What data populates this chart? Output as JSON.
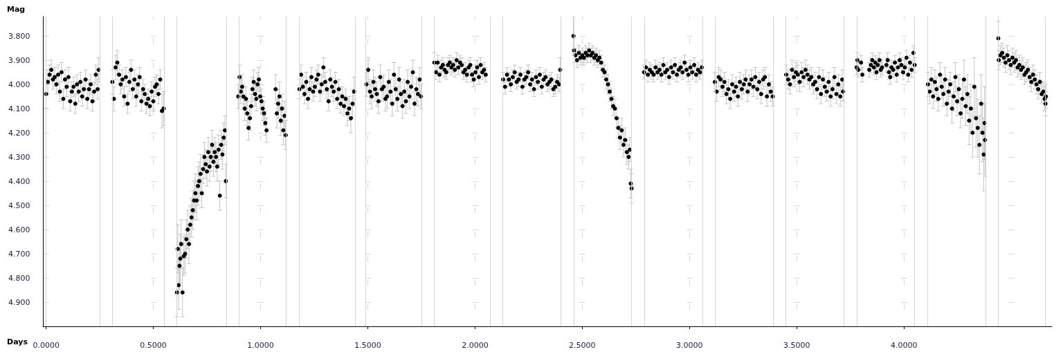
{
  "chart_data": {
    "type": "scatter",
    "xlabel": "Days",
    "ylabel": "Mag",
    "xlim": [
      -0.015,
      4.69
    ],
    "ylim": [
      5.0,
      3.72
    ],
    "xticks": [
      {
        "value": 0,
        "label": "0.0000"
      },
      {
        "value": 0.5,
        "label": "0.5000"
      },
      {
        "value": 1,
        "label": "1.0000"
      },
      {
        "value": 1.5,
        "label": "1.5000"
      },
      {
        "value": 2,
        "label": "2.0000"
      },
      {
        "value": 2.5,
        "label": "2.5000"
      },
      {
        "value": 3,
        "label": "3.0000"
      },
      {
        "value": 3.5,
        "label": "3.5000"
      },
      {
        "value": 4,
        "label": "4.0000"
      }
    ],
    "yticks": [
      {
        "value": 3.8,
        "label": "3.800"
      },
      {
        "value": 3.9,
        "label": "3.900"
      },
      {
        "value": 4.0,
        "label": "4.000"
      },
      {
        "value": 4.1,
        "label": "4.100"
      },
      {
        "value": 4.2,
        "label": "4.200"
      },
      {
        "value": 4.3,
        "label": "4.300"
      },
      {
        "value": 4.4,
        "label": "4.400"
      },
      {
        "value": 4.5,
        "label": "4.500"
      },
      {
        "value": 4.6,
        "label": "4.600"
      },
      {
        "value": 4.7,
        "label": "4.700"
      },
      {
        "value": 4.8,
        "label": "4.800"
      },
      {
        "value": 4.9,
        "label": "4.900"
      }
    ],
    "grid": true,
    "marker": "circle",
    "ref_lines": [
      {
        "axis": "x",
        "value": 0.0,
        "color": "#d3d3d3"
      },
      {
        "axis": "x",
        "value": 0.247,
        "color": "#d3d3d3"
      },
      {
        "axis": "x",
        "value": 0.309,
        "color": "#d3d3d3"
      },
      {
        "axis": "x",
        "value": 0.552,
        "color": "#d3d3d3"
      },
      {
        "axis": "x",
        "value": 0.61,
        "color": "#d3d3d3"
      },
      {
        "axis": "x",
        "value": 0.838,
        "color": "#d3d3d3"
      },
      {
        "axis": "x",
        "value": 0.896,
        "color": "#d3d3d3"
      },
      {
        "axis": "x",
        "value": 1.119,
        "color": "#d3d3d3"
      },
      {
        "axis": "x",
        "value": 1.181,
        "color": "#d3d3d3"
      },
      {
        "axis": "x",
        "value": 1.437,
        "color": "#d3d3d3"
      },
      {
        "axis": "x",
        "value": 1.494,
        "color": "#d3d3d3"
      },
      {
        "axis": "x",
        "value": 1.749,
        "color": "#d3d3d3"
      },
      {
        "axis": "x",
        "value": 1.81,
        "color": "#d3d3d3"
      },
      {
        "axis": "x",
        "value": 2.068,
        "color": "#d3d3d3"
      },
      {
        "axis": "x",
        "value": 2.131,
        "color": "#d3d3d3"
      },
      {
        "axis": "x",
        "value": 2.398,
        "color": "#d3d3d3"
      },
      {
        "axis": "x",
        "value": 2.459,
        "color": "#d3d3d3"
      },
      {
        "axis": "x",
        "value": 2.732,
        "color": "#d3d3d3"
      },
      {
        "axis": "x",
        "value": 2.788,
        "color": "#d3d3d3"
      },
      {
        "axis": "x",
        "value": 3.065,
        "color": "#d3d3d3"
      },
      {
        "axis": "x",
        "value": 3.118,
        "color": "#d3d3d3"
      },
      {
        "axis": "x",
        "value": 3.391,
        "color": "#d3d3d3"
      },
      {
        "axis": "x",
        "value": 3.451,
        "color": "#d3d3d3"
      },
      {
        "axis": "x",
        "value": 3.718,
        "color": "#d3d3d3"
      },
      {
        "axis": "x",
        "value": 3.779,
        "color": "#d3d3d3"
      },
      {
        "axis": "x",
        "value": 4.054,
        "color": "#d3d3d3"
      },
      {
        "axis": "x",
        "value": 4.112,
        "color": "#d3d3d3"
      },
      {
        "axis": "x",
        "value": 4.378,
        "color": "#d3d3d3"
      },
      {
        "axis": "x",
        "value": 4.44,
        "color": "#d3d3d3"
      },
      {
        "axis": "x",
        "value": 4.664,
        "color": "#d3d3d3"
      }
    ],
    "series": [
      {
        "color": "#000000",
        "x": [
          0.0,
          0.008,
          0.016,
          0.024,
          0.032,
          0.04,
          0.048,
          0.056,
          0.064,
          0.072,
          0.08,
          0.088,
          0.096,
          0.104,
          0.112,
          0.12,
          0.128,
          0.136,
          0.144,
          0.152,
          0.16,
          0.168,
          0.176,
          0.184,
          0.192,
          0.2,
          0.208,
          0.216,
          0.224,
          0.232,
          0.24,
          0.245
        ],
        "values": [
          4.04,
          3.99,
          3.96,
          3.94,
          3.98,
          3.97,
          4.0,
          3.96,
          4.03,
          3.95,
          4.06,
          3.98,
          4.01,
          3.97,
          4.07,
          4.03,
          4.01,
          4.08,
          4.0,
          4.03,
          3.99,
          4.05,
          4.02,
          3.98,
          4.06,
          4.02,
          4.0,
          4.07,
          4.03,
          3.96,
          4.02,
          3.94
        ],
        "errors": [
          0.06,
          0.05,
          0.04,
          0.04,
          0.04,
          0.04,
          0.04,
          0.04,
          0.04,
          0.04,
          0.04,
          0.04,
          0.04,
          0.04,
          0.04,
          0.04,
          0.04,
          0.04,
          0.04,
          0.04,
          0.04,
          0.04,
          0.04,
          0.04,
          0.04,
          0.04,
          0.04,
          0.04,
          0.04,
          0.04,
          0.04,
          0.05
        ]
      },
      {
        "color": "#000000",
        "x": [
          0.309,
          0.316,
          0.324,
          0.332,
          0.34,
          0.348,
          0.356,
          0.364,
          0.372,
          0.38,
          0.388,
          0.396,
          0.404,
          0.412,
          0.42,
          0.428,
          0.436,
          0.444,
          0.452,
          0.46,
          0.468,
          0.476,
          0.484,
          0.492,
          0.5,
          0.508,
          0.516,
          0.524,
          0.532,
          0.54,
          0.548
        ],
        "values": [
          3.99,
          4.06,
          3.93,
          3.91,
          3.96,
          4.0,
          3.98,
          4.05,
          3.97,
          4.08,
          3.99,
          3.94,
          4.02,
          3.98,
          4.05,
          4.0,
          3.97,
          4.07,
          4.02,
          4.04,
          4.08,
          4.06,
          4.09,
          4.03,
          4.07,
          4.01,
          4.0,
          4.04,
          3.98,
          4.11,
          4.1
        ],
        "errors": [
          0.05,
          0.05,
          0.05,
          0.05,
          0.04,
          0.04,
          0.04,
          0.04,
          0.04,
          0.04,
          0.04,
          0.04,
          0.04,
          0.04,
          0.04,
          0.04,
          0.04,
          0.04,
          0.04,
          0.04,
          0.04,
          0.04,
          0.04,
          0.04,
          0.04,
          0.04,
          0.04,
          0.04,
          0.04,
          0.07,
          0.07
        ]
      },
      {
        "color": "#000000",
        "x": [
          0.61,
          0.614,
          0.618,
          0.622,
          0.626,
          0.63,
          0.636,
          0.642,
          0.648,
          0.654,
          0.66,
          0.666,
          0.672,
          0.678,
          0.684,
          0.69,
          0.696,
          0.702,
          0.708,
          0.714,
          0.72,
          0.726,
          0.732,
          0.738,
          0.744,
          0.75,
          0.756,
          0.762,
          0.768,
          0.774,
          0.78,
          0.786,
          0.792,
          0.798,
          0.804,
          0.81,
          0.816,
          0.822,
          0.828,
          0.834,
          0.838
        ],
        "values": [
          4.86,
          4.68,
          4.83,
          4.75,
          4.72,
          4.66,
          4.86,
          4.71,
          4.7,
          4.64,
          4.6,
          4.66,
          4.58,
          4.55,
          4.52,
          4.48,
          4.45,
          4.48,
          4.42,
          4.4,
          4.37,
          4.45,
          4.35,
          4.3,
          4.33,
          4.36,
          4.28,
          4.34,
          4.3,
          4.25,
          4.32,
          4.28,
          4.3,
          4.34,
          4.27,
          4.46,
          4.25,
          4.29,
          4.22,
          4.19,
          4.4
        ],
        "errors": [
          0.1,
          0.1,
          0.1,
          0.1,
          0.1,
          0.1,
          0.1,
          0.08,
          0.08,
          0.08,
          0.08,
          0.08,
          0.08,
          0.08,
          0.08,
          0.08,
          0.08,
          0.08,
          0.08,
          0.08,
          0.08,
          0.06,
          0.06,
          0.06,
          0.06,
          0.06,
          0.06,
          0.06,
          0.06,
          0.06,
          0.06,
          0.06,
          0.06,
          0.06,
          0.06,
          0.06,
          0.06,
          0.06,
          0.06,
          0.06,
          0.07
        ]
      },
      {
        "color": "#000000",
        "x": [
          0.896,
          0.902,
          0.908,
          0.914,
          0.92,
          0.926,
          0.932,
          0.938,
          0.944,
          0.95,
          0.956,
          0.962,
          0.968,
          0.974,
          0.98,
          0.986,
          0.992,
          0.998,
          1.004,
          1.01,
          1.016,
          1.022,
          1.028,
          1.07,
          1.076,
          1.082,
          1.088,
          1.094,
          1.1,
          1.106,
          1.112,
          1.117
        ],
        "values": [
          4.05,
          3.97,
          4.03,
          4.01,
          4.05,
          4.1,
          4.06,
          4.12,
          4.18,
          4.14,
          4.09,
          4.02,
          3.99,
          4.04,
          4.06,
          4.0,
          3.98,
          4.05,
          4.07,
          4.1,
          4.12,
          4.16,
          4.19,
          4.02,
          4.12,
          4.08,
          4.05,
          4.15,
          4.1,
          4.19,
          4.13,
          4.21
        ],
        "errors": [
          0.05,
          0.05,
          0.05,
          0.05,
          0.05,
          0.05,
          0.05,
          0.05,
          0.05,
          0.05,
          0.05,
          0.05,
          0.05,
          0.05,
          0.05,
          0.05,
          0.05,
          0.05,
          0.05,
          0.05,
          0.05,
          0.05,
          0.05,
          0.06,
          0.06,
          0.06,
          0.06,
          0.06,
          0.06,
          0.06,
          0.06,
          0.06
        ]
      },
      {
        "color": "#000000",
        "x": [
          1.181,
          1.189,
          1.197,
          1.205,
          1.213,
          1.221,
          1.229,
          1.237,
          1.245,
          1.253,
          1.261,
          1.269,
          1.277,
          1.285,
          1.293,
          1.301,
          1.309,
          1.317,
          1.325,
          1.333,
          1.341,
          1.349,
          1.357,
          1.365,
          1.373,
          1.381,
          1.389,
          1.397,
          1.405,
          1.413,
          1.421,
          1.429,
          1.436
        ],
        "values": [
          4.02,
          3.96,
          4.01,
          4.04,
          3.99,
          4.06,
          4.02,
          3.97,
          4.03,
          4.01,
          3.98,
          3.96,
          4.03,
          4.0,
          3.93,
          3.99,
          4.02,
          4.07,
          3.98,
          4.01,
          4.03,
          3.99,
          4.06,
          4.02,
          4.08,
          4.05,
          4.09,
          4.06,
          4.12,
          4.1,
          4.14,
          4.08,
          4.03
        ],
        "errors": [
          0.04,
          0.04,
          0.04,
          0.04,
          0.04,
          0.04,
          0.04,
          0.04,
          0.04,
          0.04,
          0.04,
          0.04,
          0.04,
          0.04,
          0.04,
          0.04,
          0.04,
          0.04,
          0.04,
          0.04,
          0.04,
          0.04,
          0.04,
          0.04,
          0.04,
          0.04,
          0.04,
          0.04,
          0.05,
          0.05,
          0.06,
          0.06,
          0.06
        ]
      },
      {
        "color": "#000000",
        "x": [
          1.494,
          1.502,
          1.51,
          1.518,
          1.526,
          1.534,
          1.542,
          1.55,
          1.558,
          1.566,
          1.574,
          1.582,
          1.59,
          1.598,
          1.606,
          1.614,
          1.622,
          1.63,
          1.638,
          1.646,
          1.654,
          1.662,
          1.67,
          1.678,
          1.686,
          1.694,
          1.702,
          1.71,
          1.718,
          1.726,
          1.734,
          1.742,
          1.748
        ],
        "values": [
          4.0,
          3.94,
          4.03,
          4.05,
          3.99,
          4.02,
          4.04,
          4.07,
          3.97,
          4.02,
          4.01,
          4.06,
          4.05,
          3.99,
          4.03,
          4.08,
          3.96,
          4.02,
          4.06,
          3.98,
          4.04,
          4.09,
          4.03,
          4.07,
          3.99,
          4.05,
          4.01,
          3.95,
          4.08,
          4.02,
          4.04,
          3.98,
          4.05
        ],
        "errors": [
          0.05,
          0.05,
          0.05,
          0.05,
          0.05,
          0.05,
          0.05,
          0.05,
          0.05,
          0.05,
          0.05,
          0.05,
          0.05,
          0.05,
          0.05,
          0.05,
          0.05,
          0.05,
          0.05,
          0.05,
          0.05,
          0.05,
          0.05,
          0.05,
          0.05,
          0.05,
          0.05,
          0.05,
          0.05,
          0.05,
          0.05,
          0.05,
          0.05
        ]
      },
      {
        "color": "#000000",
        "x": [
          1.81,
          1.818,
          1.826,
          1.834,
          1.842,
          1.85,
          1.858,
          1.866,
          1.874,
          1.882,
          1.89,
          1.898,
          1.906,
          1.914,
          1.922,
          1.93,
          1.938,
          1.946,
          1.954,
          1.962,
          1.97,
          1.978,
          1.986,
          1.994,
          2.002,
          2.01,
          2.018,
          2.026,
          2.034,
          2.042,
          2.05
        ],
        "values": [
          3.91,
          3.95,
          3.91,
          3.96,
          3.93,
          3.92,
          3.94,
          3.95,
          3.92,
          3.91,
          3.93,
          3.92,
          3.94,
          3.9,
          3.93,
          3.91,
          3.92,
          3.95,
          3.94,
          3.96,
          3.93,
          3.92,
          3.96,
          3.98,
          3.95,
          3.93,
          3.97,
          3.92,
          3.95,
          3.94,
          3.96
        ],
        "errors": [
          0.04,
          0.03,
          0.03,
          0.03,
          0.03,
          0.03,
          0.03,
          0.03,
          0.03,
          0.03,
          0.03,
          0.03,
          0.03,
          0.03,
          0.03,
          0.03,
          0.03,
          0.03,
          0.03,
          0.03,
          0.03,
          0.03,
          0.03,
          0.03,
          0.03,
          0.03,
          0.03,
          0.03,
          0.03,
          0.03,
          0.03
        ]
      },
      {
        "color": "#000000",
        "x": [
          2.131,
          2.14,
          2.149,
          2.158,
          2.167,
          2.176,
          2.185,
          2.194,
          2.203,
          2.212,
          2.221,
          2.23,
          2.239,
          2.248,
          2.257,
          2.266,
          2.275,
          2.284,
          2.293,
          2.302,
          2.311,
          2.32,
          2.329,
          2.338,
          2.347,
          2.356,
          2.365,
          2.374,
          2.383,
          2.392,
          2.397
        ],
        "values": [
          3.98,
          4.01,
          3.96,
          3.98,
          4.0,
          3.97,
          3.95,
          3.99,
          3.98,
          3.96,
          4.01,
          3.98,
          3.97,
          3.95,
          4.0,
          3.98,
          4.02,
          3.97,
          3.99,
          3.96,
          4.01,
          3.98,
          3.97,
          4.0,
          3.99,
          3.98,
          4.02,
          4.01,
          3.99,
          4.0,
          3.94
        ],
        "errors": [
          0.03,
          0.03,
          0.03,
          0.03,
          0.03,
          0.03,
          0.03,
          0.03,
          0.03,
          0.03,
          0.03,
          0.03,
          0.03,
          0.03,
          0.03,
          0.03,
          0.03,
          0.03,
          0.03,
          0.03,
          0.03,
          0.03,
          0.03,
          0.03,
          0.03,
          0.03,
          0.03,
          0.03,
          0.03,
          0.03,
          0.05
        ]
      },
      {
        "color": "#000000",
        "x": [
          2.459,
          2.462,
          2.468,
          2.476,
          2.484,
          2.492,
          2.5,
          2.508,
          2.516,
          2.524,
          2.532,
          2.54,
          2.548,
          2.556,
          2.564,
          2.572,
          2.58,
          2.588,
          2.596,
          2.604,
          2.612,
          2.62,
          2.628,
          2.636,
          2.644,
          2.652,
          2.66,
          2.668,
          2.676,
          2.684,
          2.692,
          2.7,
          2.708,
          2.716,
          2.722,
          2.726,
          2.73
        ],
        "values": [
          3.8,
          3.86,
          3.88,
          3.9,
          3.87,
          3.89,
          3.88,
          3.89,
          3.87,
          3.88,
          3.86,
          3.88,
          3.87,
          3.89,
          3.88,
          3.9,
          3.89,
          3.91,
          3.94,
          3.95,
          3.98,
          4.0,
          4.03,
          4.06,
          4.09,
          4.1,
          4.14,
          4.18,
          4.22,
          4.19,
          4.25,
          4.23,
          4.28,
          4.3,
          4.27,
          4.41,
          4.43
        ],
        "errors": [
          0.08,
          0.05,
          0.03,
          0.03,
          0.03,
          0.03,
          0.03,
          0.03,
          0.03,
          0.03,
          0.03,
          0.03,
          0.03,
          0.03,
          0.03,
          0.03,
          0.03,
          0.03,
          0.03,
          0.03,
          0.04,
          0.04,
          0.04,
          0.04,
          0.04,
          0.04,
          0.04,
          0.04,
          0.05,
          0.05,
          0.05,
          0.05,
          0.05,
          0.05,
          0.05,
          0.06,
          0.06
        ]
      },
      {
        "color": "#000000",
        "x": [
          2.788,
          2.797,
          2.806,
          2.815,
          2.824,
          2.833,
          2.842,
          2.851,
          2.86,
          2.869,
          2.878,
          2.887,
          2.896,
          2.905,
          2.914,
          2.923,
          2.932,
          2.941,
          2.95,
          2.959,
          2.968,
          2.977,
          2.986,
          2.995,
          3.004,
          3.013,
          3.022,
          3.031,
          3.04,
          3.049,
          3.058
        ],
        "values": [
          3.95,
          3.93,
          3.96,
          3.94,
          3.95,
          3.96,
          3.93,
          3.95,
          3.94,
          3.96,
          3.92,
          3.95,
          3.94,
          3.97,
          3.93,
          3.95,
          3.92,
          3.96,
          3.94,
          3.93,
          3.95,
          3.91,
          3.94,
          3.96,
          3.93,
          3.95,
          3.92,
          3.96,
          3.94,
          3.95,
          3.93
        ],
        "errors": [
          0.03,
          0.03,
          0.03,
          0.03,
          0.03,
          0.03,
          0.03,
          0.03,
          0.03,
          0.03,
          0.03,
          0.03,
          0.03,
          0.03,
          0.03,
          0.03,
          0.03,
          0.03,
          0.03,
          0.03,
          0.03,
          0.03,
          0.03,
          0.03,
          0.03,
          0.03,
          0.03,
          0.03,
          0.03,
          0.03,
          0.03
        ]
      },
      {
        "color": "#000000",
        "x": [
          3.118,
          3.127,
          3.136,
          3.145,
          3.154,
          3.163,
          3.172,
          3.181,
          3.19,
          3.199,
          3.208,
          3.217,
          3.226,
          3.235,
          3.244,
          3.253,
          3.262,
          3.271,
          3.28,
          3.289,
          3.298,
          3.307,
          3.316,
          3.325,
          3.334,
          3.343,
          3.352,
          3.361,
          3.37,
          3.379,
          3.388
        ],
        "values": [
          3.99,
          4.03,
          3.97,
          3.98,
          4.01,
          3.99,
          4.04,
          4.02,
          4.06,
          4.0,
          4.03,
          4.01,
          4.05,
          3.99,
          4.02,
          4.0,
          3.98,
          4.03,
          4.0,
          3.98,
          4.01,
          3.97,
          4.02,
          3.99,
          4.04,
          3.98,
          3.97,
          4.05,
          4.0,
          4.03,
          4.05
        ],
        "errors": [
          0.04,
          0.04,
          0.04,
          0.04,
          0.04,
          0.04,
          0.04,
          0.04,
          0.04,
          0.04,
          0.04,
          0.04,
          0.04,
          0.04,
          0.04,
          0.04,
          0.04,
          0.04,
          0.04,
          0.04,
          0.04,
          0.04,
          0.04,
          0.04,
          0.04,
          0.04,
          0.04,
          0.04,
          0.04,
          0.04,
          0.04
        ]
      },
      {
        "color": "#000000",
        "x": [
          3.451,
          3.46,
          3.469,
          3.478,
          3.487,
          3.496,
          3.505,
          3.514,
          3.523,
          3.532,
          3.541,
          3.55,
          3.559,
          3.568,
          3.577,
          3.586,
          3.595,
          3.604,
          3.613,
          3.622,
          3.631,
          3.64,
          3.649,
          3.658,
          3.667,
          3.676,
          3.685,
          3.694,
          3.703,
          3.712,
          3.716
        ],
        "values": [
          3.96,
          3.98,
          4.0,
          3.94,
          3.97,
          3.95,
          3.96,
          3.99,
          3.95,
          3.97,
          3.94,
          3.96,
          3.98,
          3.97,
          4.0,
          3.99,
          4.02,
          3.97,
          4.04,
          3.98,
          4.01,
          4.03,
          3.99,
          4.05,
          4.02,
          3.97,
          4.04,
          4.0,
          4.05,
          3.98,
          4.03
        ],
        "errors": [
          0.04,
          0.04,
          0.04,
          0.04,
          0.04,
          0.04,
          0.04,
          0.04,
          0.04,
          0.04,
          0.04,
          0.04,
          0.04,
          0.04,
          0.04,
          0.04,
          0.04,
          0.04,
          0.04,
          0.04,
          0.04,
          0.04,
          0.04,
          0.04,
          0.04,
          0.04,
          0.04,
          0.04,
          0.04,
          0.04,
          0.04
        ]
      },
      {
        "color": "#000000",
        "x": [
          3.779,
          3.783,
          3.787,
          3.8,
          3.806,
          3.838,
          3.846,
          3.852,
          3.86,
          3.866,
          3.872,
          3.878,
          3.886,
          3.892,
          3.898,
          3.918,
          3.924,
          3.93,
          3.936,
          3.942,
          3.95,
          3.958,
          3.966,
          3.972,
          3.98,
          3.988,
          3.996,
          4.004,
          4.012,
          4.02,
          4.028,
          4.036,
          4.044,
          4.05
        ],
        "values": [
          3.93,
          3.9,
          3.94,
          3.91,
          3.96,
          3.94,
          3.92,
          3.9,
          3.93,
          3.91,
          3.95,
          3.92,
          3.9,
          3.94,
          3.93,
          3.92,
          3.9,
          3.95,
          3.97,
          3.93,
          3.94,
          3.91,
          3.96,
          3.93,
          3.9,
          3.92,
          3.95,
          3.93,
          3.89,
          3.96,
          3.91,
          3.94,
          3.87,
          3.92
        ],
        "errors": [
          0.03,
          0.03,
          0.03,
          0.03,
          0.03,
          0.03,
          0.03,
          0.03,
          0.03,
          0.03,
          0.03,
          0.03,
          0.03,
          0.03,
          0.03,
          0.03,
          0.03,
          0.03,
          0.03,
          0.03,
          0.03,
          0.03,
          0.03,
          0.03,
          0.03,
          0.03,
          0.03,
          0.03,
          0.03,
          0.03,
          0.03,
          0.03,
          0.03,
          0.03
        ]
      },
      {
        "color": "#000000",
        "x": [
          4.112,
          4.12,
          4.128,
          4.136,
          4.144,
          4.152,
          4.16,
          4.168,
          4.176,
          4.184,
          4.192,
          4.2,
          4.208,
          4.216,
          4.224,
          4.232,
          4.24,
          4.248,
          4.256,
          4.264,
          4.272,
          4.28,
          4.288,
          4.296,
          4.304,
          4.312,
          4.32,
          4.328,
          4.336,
          4.344,
          4.352,
          4.36,
          4.366,
          4.372,
          4.376,
          4.378
        ],
        "values": [
          4.0,
          4.03,
          3.98,
          4.05,
          3.99,
          4.02,
          4.06,
          3.96,
          4.01,
          4.04,
          3.98,
          4.08,
          4.03,
          4.0,
          4.1,
          4.05,
          3.97,
          4.07,
          4.02,
          4.12,
          4.06,
          3.98,
          4.09,
          4.04,
          4.15,
          4.1,
          4.2,
          4.01,
          4.14,
          4.18,
          4.25,
          4.08,
          4.2,
          4.29,
          4.16,
          4.23
        ],
        "errors": [
          0.05,
          0.05,
          0.05,
          0.05,
          0.05,
          0.05,
          0.05,
          0.05,
          0.05,
          0.05,
          0.05,
          0.05,
          0.05,
          0.05,
          0.06,
          0.06,
          0.06,
          0.06,
          0.06,
          0.06,
          0.08,
          0.08,
          0.08,
          0.08,
          0.1,
          0.1,
          0.1,
          0.12,
          0.12,
          0.12,
          0.12,
          0.12,
          0.12,
          0.15,
          0.15,
          0.15
        ]
      },
      {
        "color": "#000000",
        "x": [
          4.44,
          4.442,
          4.45,
          4.458,
          4.466,
          4.474,
          4.482,
          4.49,
          4.498,
          4.506,
          4.514,
          4.522,
          4.53,
          4.538,
          4.546,
          4.554,
          4.562,
          4.57,
          4.578,
          4.586,
          4.594,
          4.602,
          4.61,
          4.618,
          4.626,
          4.634,
          4.642,
          4.65,
          4.656,
          4.66,
          4.662
        ],
        "values": [
          3.81,
          3.9,
          3.88,
          3.87,
          3.89,
          3.91,
          3.88,
          3.9,
          3.92,
          3.89,
          3.91,
          3.9,
          3.93,
          3.92,
          3.94,
          3.93,
          3.96,
          3.95,
          3.94,
          3.97,
          3.99,
          3.96,
          3.98,
          4.0,
          4.02,
          3.99,
          4.04,
          4.03,
          4.06,
          4.08,
          4.05
        ],
        "errors": [
          0.07,
          0.04,
          0.04,
          0.04,
          0.04,
          0.04,
          0.04,
          0.04,
          0.04,
          0.04,
          0.04,
          0.04,
          0.04,
          0.04,
          0.04,
          0.04,
          0.04,
          0.04,
          0.04,
          0.04,
          0.04,
          0.04,
          0.04,
          0.04,
          0.04,
          0.04,
          0.04,
          0.04,
          0.05,
          0.05,
          0.05
        ]
      }
    ]
  }
}
